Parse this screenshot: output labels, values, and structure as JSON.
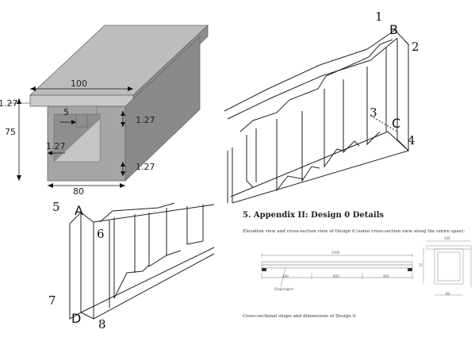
{
  "cross_section_3d": {
    "dims": {
      "top_width": "100",
      "flange_thickness": "1.27",
      "slot_width": "5",
      "web_thickness_top": "1.27",
      "height": "75",
      "wall_thickness_left": "1.27",
      "bottom_thickness": "1.27",
      "bottom_width": "80"
    }
  },
  "beam_upper_right": {
    "labels": {
      "p1": "1",
      "pB": "B",
      "p2": "2",
      "p3": "3",
      "pC": "C",
      "p4": "4"
    }
  },
  "beam_lower_left": {
    "labels": {
      "p5": "5",
      "pA": "A",
      "p6": "6",
      "p7": "7",
      "pD": "D",
      "p8": "8"
    }
  },
  "appendix": {
    "heading": "5.  Appendix II: Design 0 Details",
    "intro": "Elevation view and cross-section view of Design 0 (same cross-section view along the entire span):",
    "caption": "Cross-sectional shape and dimensions of Design 0.",
    "elevation": {
      "total": "1200",
      "seg_left": "400",
      "seg_mid": "400",
      "seg_right": "400",
      "note": "Diaphragms"
    },
    "section": {
      "top": "100",
      "side": "75",
      "bottom": "80"
    }
  }
}
